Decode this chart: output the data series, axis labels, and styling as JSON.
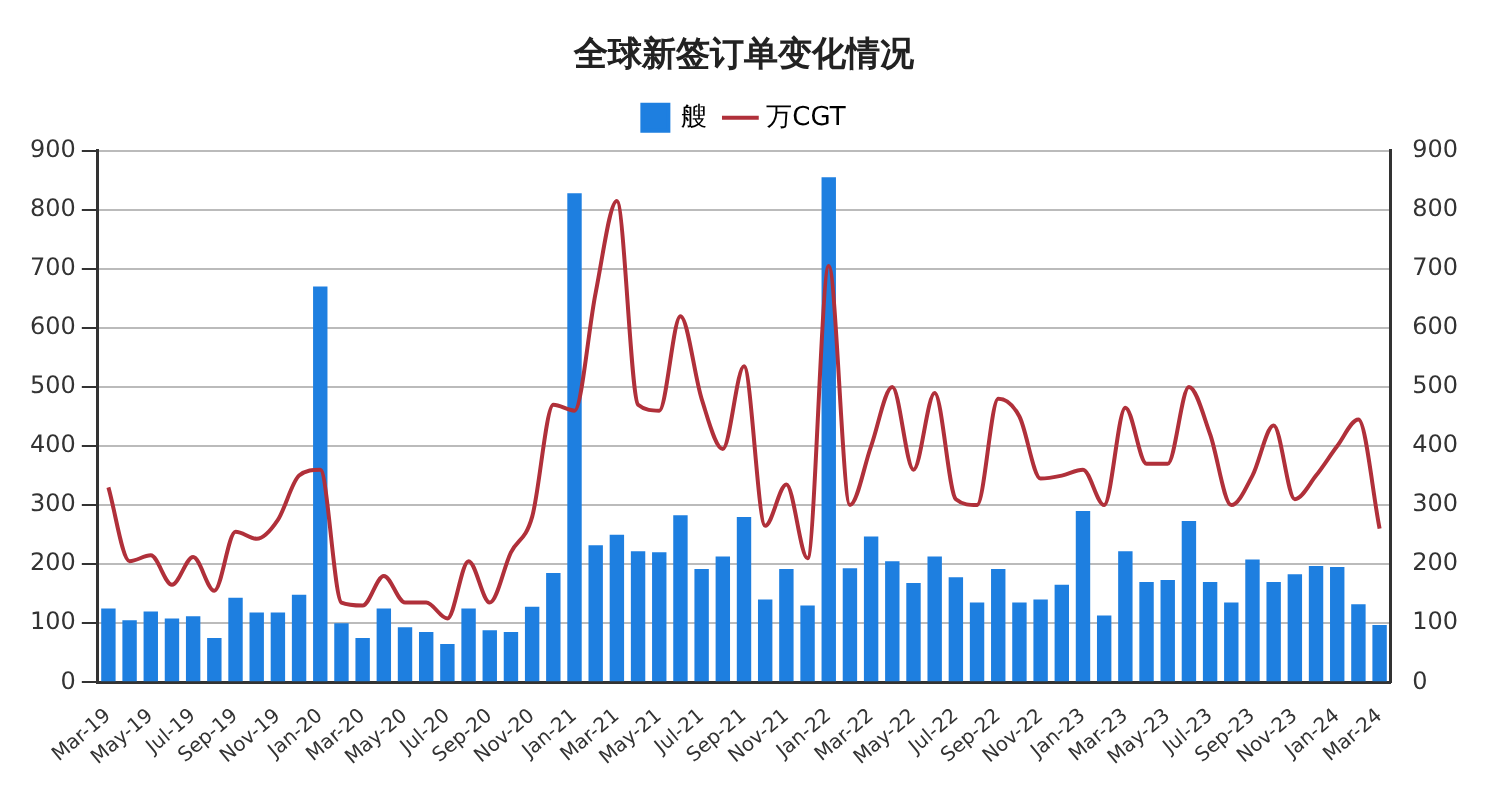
{
  "chart_data": {
    "type": "bar",
    "title": "全球新签订单变化情况",
    "categories": [
      "Mar-19",
      null,
      "May-19",
      null,
      "Jul-19",
      null,
      "Sep-19",
      null,
      "Nov-19",
      null,
      "Jan-20",
      null,
      "Mar-20",
      null,
      "May-20",
      null,
      "Jul-20",
      null,
      "Sep-20",
      null,
      "Nov-20",
      null,
      "Jan-21",
      null,
      "Mar-21",
      null,
      "May-21",
      null,
      "Jul-21",
      null,
      "Sep-21",
      null,
      "Nov-21",
      null,
      "Jan-22",
      null,
      "Mar-22",
      null,
      "May-22",
      null,
      "Jul-22",
      null,
      "Sep-22",
      null,
      "Nov-22",
      null,
      "Jan-23",
      null,
      "Mar-23",
      null,
      "May-23",
      null,
      "Jul-23",
      null,
      "Sep-23",
      null,
      "Nov-23",
      null,
      "Jan-24",
      null,
      "Mar-24"
    ],
    "series": [
      {
        "name": "艘",
        "color": "#1e7fe0",
        "values": [
          125,
          105,
          120,
          108,
          112,
          75,
          143,
          118,
          118,
          148,
          670,
          100,
          75,
          125,
          93,
          85,
          65,
          125,
          88,
          85,
          128,
          185,
          828,
          232,
          250,
          222,
          220,
          283,
          192,
          213,
          280,
          140,
          192,
          130,
          855,
          193,
          247,
          205,
          168,
          213,
          178,
          135,
          192,
          135,
          140,
          165,
          290,
          113,
          222,
          170,
          173,
          273,
          170,
          135,
          208,
          170,
          183,
          197,
          195,
          132,
          97
        ]
      },
      {
        "name": "万CGT",
        "type": "line",
        "axis": "y2",
        "color": "#b0303a",
        "values": [
          330,
          205,
          215,
          165,
          212,
          155,
          255,
          243,
          275,
          350,
          360,
          135,
          130,
          180,
          135,
          135,
          108,
          205,
          135,
          220,
          280,
          470,
          460,
          660,
          815,
          470,
          460,
          620,
          480,
          395,
          535,
          265,
          335,
          210,
          705,
          300,
          400,
          500,
          360,
          490,
          310,
          300,
          480,
          450,
          345,
          350,
          360,
          300,
          465,
          370,
          370,
          500,
          420,
          300,
          350,
          435,
          310,
          350,
          400,
          445,
          260
        ]
      }
    ],
    "ylim": [
      0,
      900
    ],
    "yticks": [
      0,
      100,
      200,
      300,
      400,
      500,
      600,
      700,
      800,
      900
    ],
    "y2lim": [
      0,
      900
    ],
    "y2ticks": [
      0,
      100,
      200,
      300,
      400,
      500,
      600,
      700,
      800,
      900
    ],
    "grid": "y",
    "legend": "top",
    "marker": "none",
    "line_style": "solid"
  }
}
